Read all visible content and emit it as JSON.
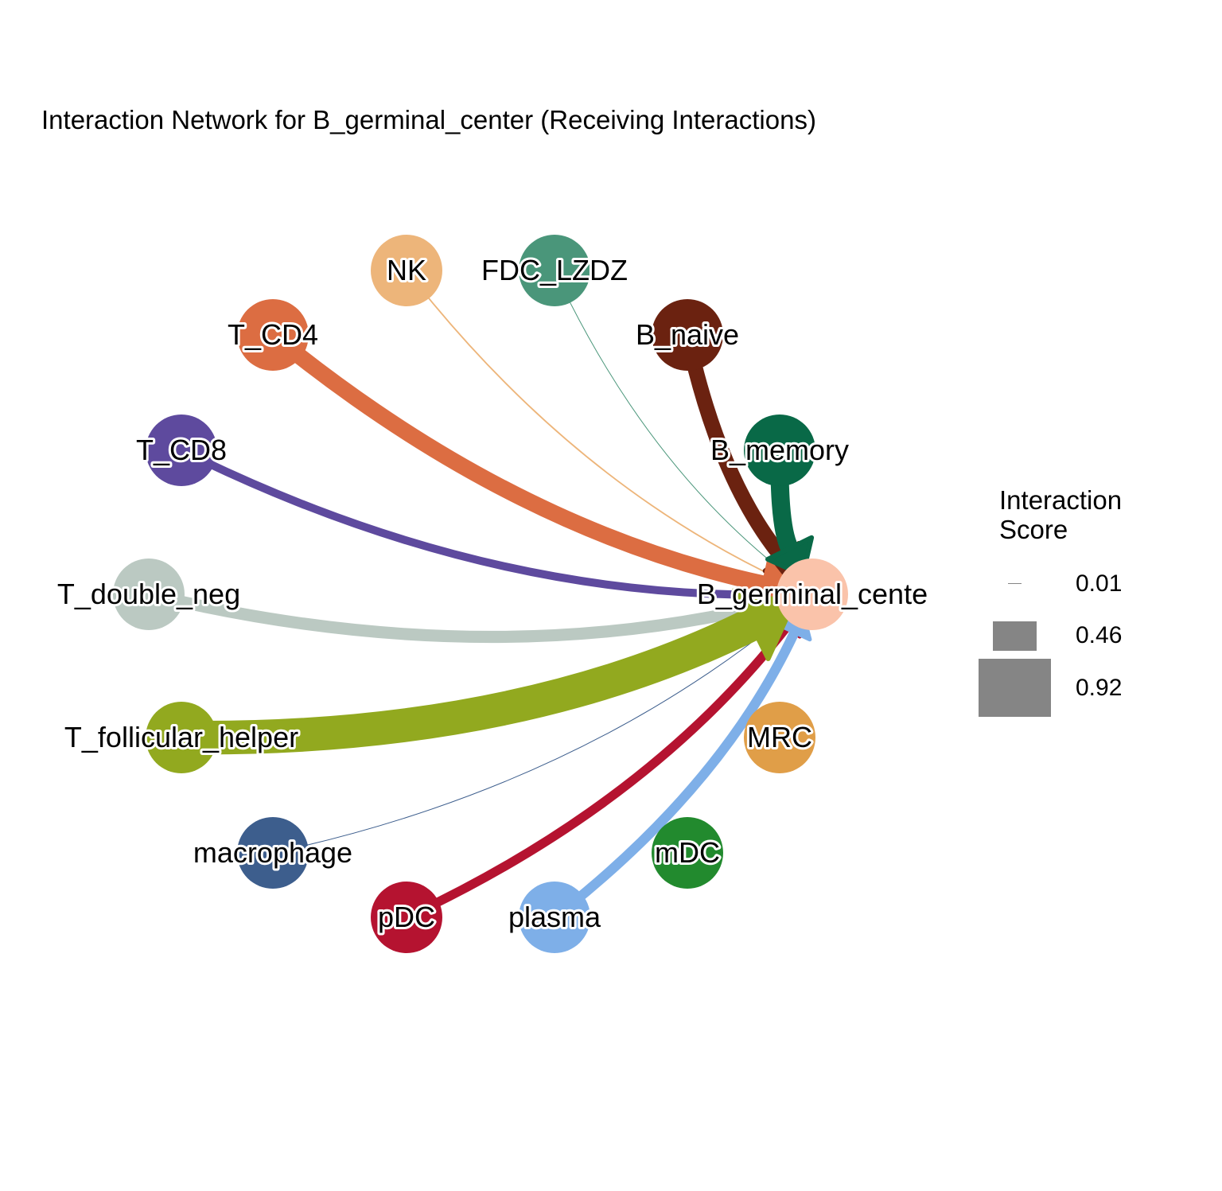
{
  "title": "Interaction Network for B_germinal_center (Receiving Interactions)",
  "target": "B_germinal_cente",
  "legend": {
    "title_line1": "Interaction",
    "title_line2": "Score",
    "entries": [
      {
        "label": "0.01",
        "value": 0.01
      },
      {
        "label": "0.46",
        "value": 0.46
      },
      {
        "label": "0.92",
        "value": 0.92
      }
    ],
    "color": "#858585"
  },
  "nodes": [
    {
      "id": "NK",
      "color": "#EDB57A"
    },
    {
      "id": "FDC_LZDZ",
      "color": "#4A967A"
    },
    {
      "id": "B_naive",
      "color": "#6B2210"
    },
    {
      "id": "B_memory",
      "color": "#096947"
    },
    {
      "id": "B_germinal_cente",
      "color": "#FAC3AA"
    },
    {
      "id": "MRC",
      "color": "#E09E48"
    },
    {
      "id": "mDC",
      "color": "#228A2E"
    },
    {
      "id": "plasma",
      "color": "#7EAFE8"
    },
    {
      "id": "pDC",
      "color": "#B51330"
    },
    {
      "id": "macrophage",
      "color": "#3D5E8D"
    },
    {
      "id": "T_follicular_helper",
      "color": "#92A91F"
    },
    {
      "id": "T_double_neg",
      "color": "#BBC9C2"
    },
    {
      "id": "T_CD8",
      "color": "#5E4A9E"
    },
    {
      "id": "T_CD4",
      "color": "#DC6D42"
    }
  ],
  "edges": [
    {
      "source": "NK",
      "target": "B_germinal_cente",
      "score": 0.04
    },
    {
      "source": "FDC_LZDZ",
      "target": "B_germinal_cente",
      "score": 0.01
    },
    {
      "source": "macrophage",
      "target": "B_germinal_cente",
      "score": 0.02
    },
    {
      "source": "T_CD8",
      "target": "B_germinal_cente",
      "score": 0.22
    },
    {
      "source": "pDC",
      "target": "B_germinal_cente",
      "score": 0.25
    },
    {
      "source": "plasma",
      "target": "B_germinal_cente",
      "score": 0.27
    },
    {
      "source": "T_double_neg",
      "target": "B_germinal_cente",
      "score": 0.33
    },
    {
      "source": "B_naive",
      "target": "B_germinal_cente",
      "score": 0.42
    },
    {
      "source": "T_CD4",
      "target": "B_germinal_cente",
      "score": 0.45
    },
    {
      "source": "B_memory",
      "target": "B_germinal_cente",
      "score": 0.5
    },
    {
      "source": "T_follicular_helper",
      "target": "B_germinal_cente",
      "score": 0.92
    }
  ]
}
